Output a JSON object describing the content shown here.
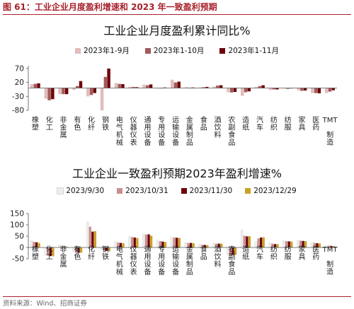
{
  "figure": {
    "label": "图 61：",
    "title": "工业企业月度盈利增速和 2023 年一致盈利预期",
    "source": "资料来源：Wind、招商证券"
  },
  "colors": {
    "accent": "#a8202a"
  },
  "chart_data": [
    {
      "type": "bar",
      "title": "工业企业月度盈利累计同比%",
      "xlabel": "",
      "ylabel": "",
      "ylim": [
        -80,
        80
      ],
      "yticks": [
        70,
        20,
        -30,
        -80
      ],
      "grid": false,
      "legend": "top",
      "categories": [
        "橡塑",
        "化工",
        "非金属",
        "有色",
        "化纤",
        "钢铁",
        "电气机械",
        "仪器仪表",
        "通用设备",
        "专用设备",
        "运输设备",
        "金属制品",
        "食品",
        "酒饮料",
        "农副食品",
        "造纸",
        "汽车",
        "纺织",
        "纺服",
        "家具",
        "医药",
        "TMT制造"
      ],
      "series": [
        {
          "name": "2023年1-9月",
          "color": "#e3bcbc",
          "values": [
            14,
            -38,
            -22,
            -7,
            -30,
            -90,
            18,
            5,
            12,
            -2,
            30,
            3,
            2,
            5,
            -15,
            -28,
            4,
            -7,
            -2,
            -8,
            -18,
            -18
          ]
        },
        {
          "name": "2023年1-10月",
          "color": "#a15a5a",
          "values": [
            15,
            -44,
            -22,
            7,
            -25,
            40,
            15,
            4,
            10,
            0,
            20,
            1,
            3,
            9,
            -16,
            -15,
            7,
            -5,
            -3,
            -10,
            -18,
            -13
          ]
        },
        {
          "name": "2023年1-11月",
          "color": "#6e0009",
          "values": [
            17,
            -40,
            -22,
            25,
            -18,
            70,
            14,
            3,
            13,
            2,
            23,
            2,
            4,
            10,
            -14,
            -12,
            10,
            -5,
            0,
            -9,
            -19,
            -8
          ]
        }
      ]
    },
    {
      "type": "bar",
      "title": "工业企业一致盈利预期2023年盈利增速%",
      "xlabel": "",
      "ylabel": "",
      "ylim": [
        -50,
        150
      ],
      "yticks": [
        150,
        100,
        50,
        0,
        -50
      ],
      "grid": false,
      "legend": "top",
      "categories": [
        "橡塑",
        "化工",
        "非金属",
        "有色",
        "化纤",
        "钢铁",
        "电气机械",
        "仪器仪表",
        "通用设备",
        "专用设备",
        "运输设备",
        "金属制品",
        "食品",
        "酒饮料",
        "农副食品",
        "造纸",
        "汽车",
        "纺织",
        "纺服",
        "家具",
        "医药",
        "TMT制造"
      ],
      "series": [
        {
          "name": "2023/9/30",
          "color": "#ededed",
          "values": [
            30,
            -35,
            12,
            -18,
            113,
            -8,
            26,
            50,
            60,
            32,
            47,
            22,
            15,
            18,
            -32,
            78,
            25,
            20,
            30,
            32,
            22,
            10
          ]
        },
        {
          "name": "2023/10/31",
          "color": "#c98f8f",
          "values": [
            25,
            -37,
            5,
            -22,
            92,
            -12,
            22,
            46,
            57,
            28,
            44,
            20,
            12,
            17,
            -35,
            52,
            40,
            17,
            28,
            30,
            20,
            8
          ]
        },
        {
          "name": "2023/11/30",
          "color": "#6e0009",
          "values": [
            23,
            -38,
            4,
            -24,
            70,
            -15,
            20,
            44,
            58,
            26,
            43,
            20,
            11,
            17,
            -33,
            49,
            44,
            15,
            27,
            29,
            19,
            7
          ]
        },
        {
          "name": "2023/12/29",
          "color": "#c9a227",
          "values": [
            20,
            -39,
            3,
            -23,
            72,
            -16,
            19,
            42,
            52,
            24,
            42,
            19,
            10,
            17,
            -32,
            50,
            45,
            15,
            26,
            28,
            18,
            6
          ]
        }
      ]
    }
  ]
}
